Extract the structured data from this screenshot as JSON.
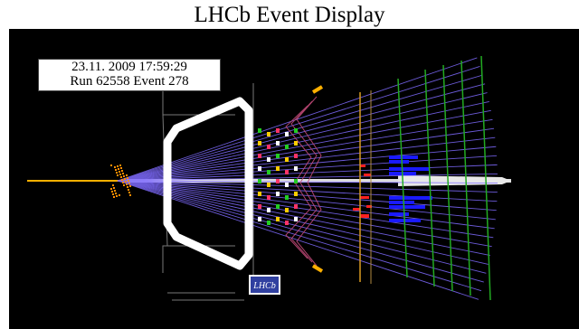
{
  "header": {
    "title": "LHCb Event Display"
  },
  "event_info": {
    "datetime": "23.11. 2009  17:59:29",
    "run_event": "Run 62558 Event 278"
  },
  "logo": {
    "text": "LHCb"
  },
  "colors": {
    "background": "#000000",
    "magnet": "#ffffff",
    "tracks": "#7f6bff",
    "rich_rings": "#c04a78",
    "calorimeter_hits": "#1a1aff",
    "muon_stations": "#22aa22",
    "velo_hits": "#ff8c00"
  }
}
